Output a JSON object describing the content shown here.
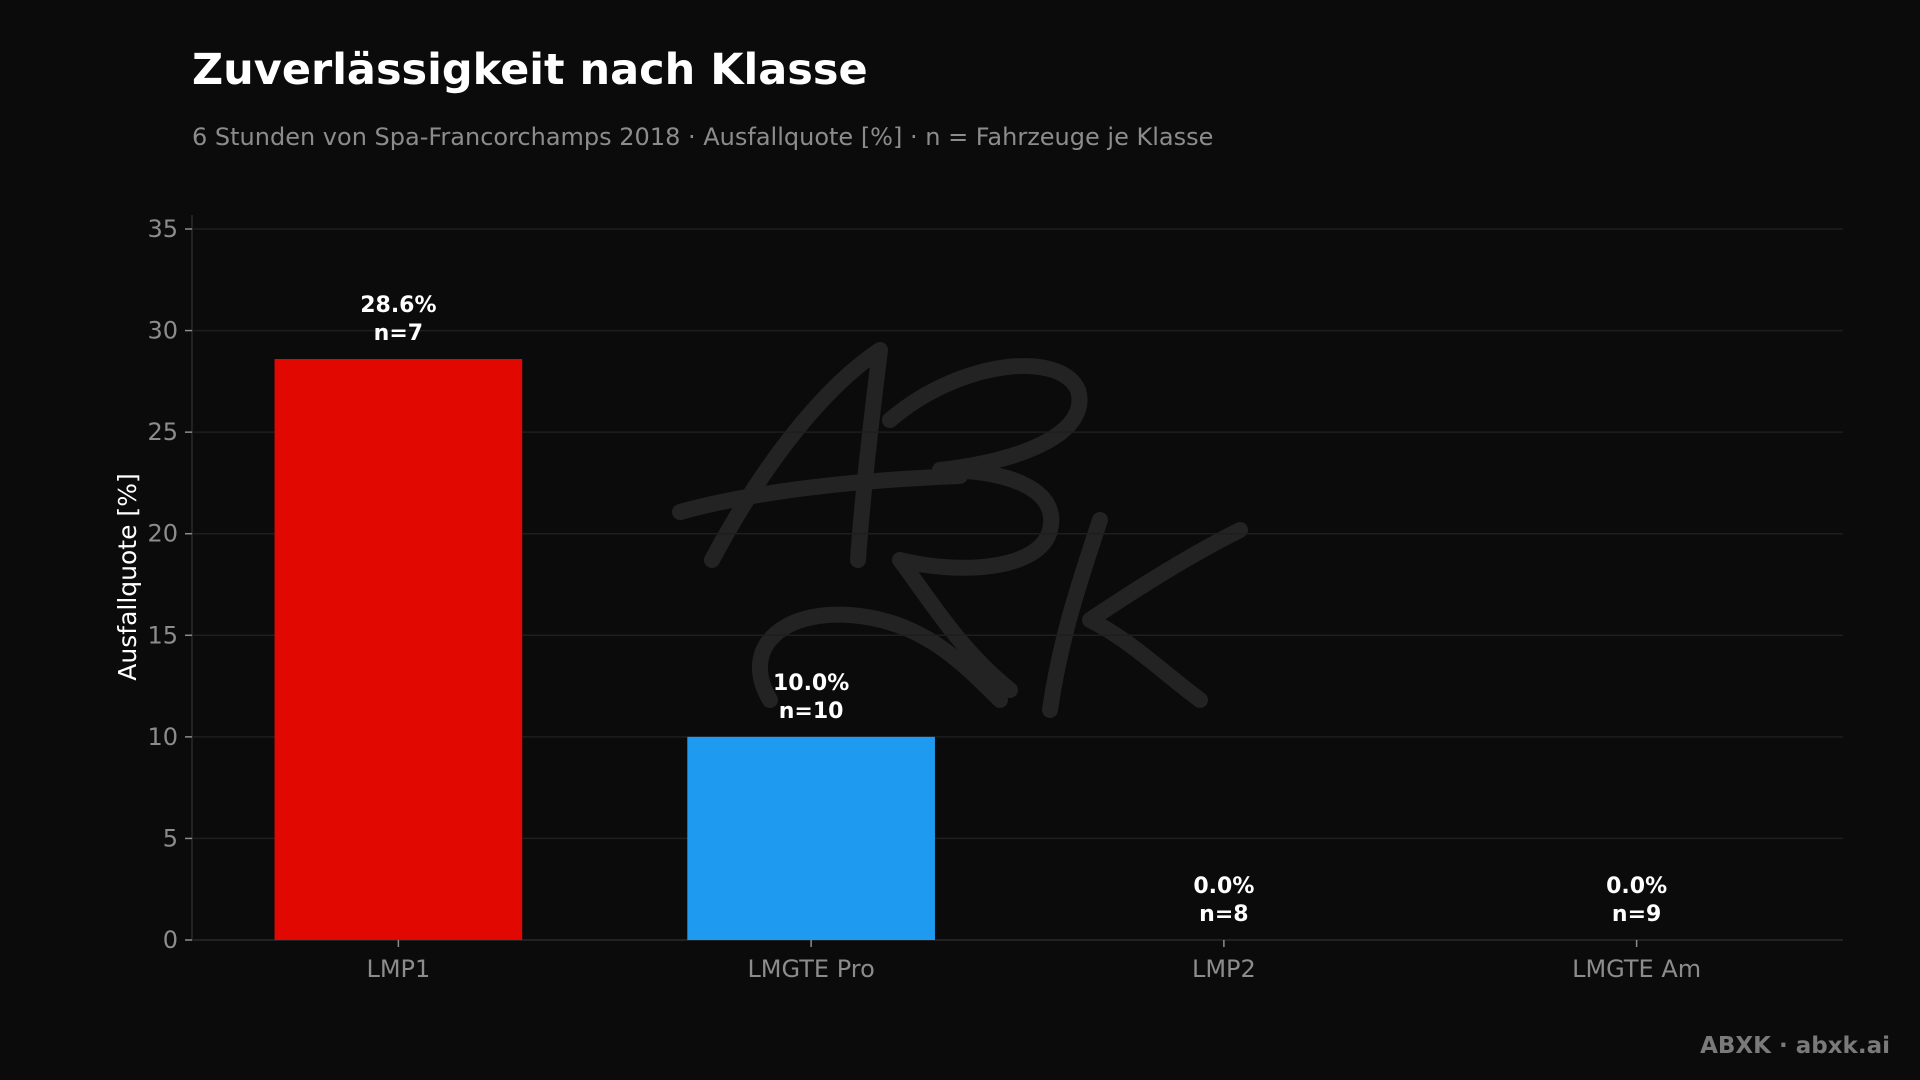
{
  "chart_data": {
    "type": "bar",
    "title": "Zuverlässigkeit nach Klasse",
    "subtitle": "6 Stunden von Spa-Francorchamps 2018 · Ausfallquote [%] · n = Fahrzeuge je Klasse",
    "xlabel": "",
    "ylabel": "Ausfallquote [%]",
    "ylim": [
      0,
      35
    ],
    "yticks": [
      0,
      5,
      10,
      15,
      20,
      25,
      30,
      35
    ],
    "grid": true,
    "categories": [
      "LMP1",
      "LMGTE Pro",
      "LMP2",
      "LMGTE Am"
    ],
    "values": [
      28.6,
      10.0,
      0.0,
      0.0
    ],
    "n": [
      7,
      10,
      8,
      9
    ],
    "value_labels": [
      "28.6%",
      "10.0%",
      "0.0%",
      "0.0%"
    ],
    "n_labels": [
      "n=7",
      "n=10",
      "n=8",
      "n=9"
    ],
    "colors": [
      "#e00800",
      "#1e9bf0",
      "#e00800",
      "#1e9bf0"
    ]
  },
  "watermark": "ABXK",
  "credit": "ABXK · abxk.ai",
  "colors": {
    "background": "#0b0b0b"
  }
}
